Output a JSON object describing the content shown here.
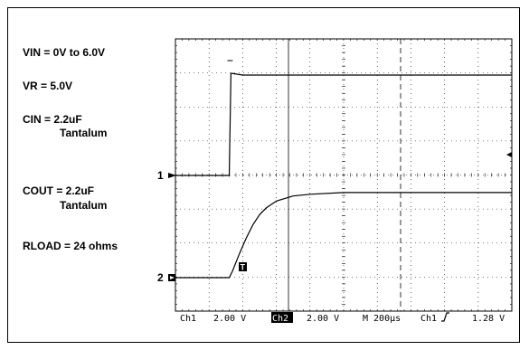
{
  "conditions": {
    "vin": "VIN = 0V to 6.0V",
    "vr": "VR = 5.0V",
    "cin_line1": "CIN = 2.2uF",
    "cin_line2": "Tantalum",
    "cout_line1": "COUT = 2.2uF",
    "cout_line2": "Tantalum",
    "rload": "RLOAD = 24 ohms"
  },
  "scope": {
    "ch1_marker": "1",
    "ch2_marker": "2",
    "trigger_marker": "T",
    "status_bar": {
      "ch1_label": "Ch1",
      "ch1_scale": "2.00 V",
      "ch2_label": "Ch2",
      "ch2_scale": "2.00 V",
      "timebase": "M 200µs",
      "trigger_source": "Ch1",
      "trigger_slope_icon": "rising-edge-icon",
      "trigger_level": "1.28 V"
    },
    "colors": {
      "trace": "#000000",
      "grid": "#000000",
      "background": "#ffffff",
      "ch2_label_bg": "#000000"
    }
  },
  "chart_data": {
    "type": "line",
    "title": "",
    "xlabel": "",
    "ylabel": "",
    "x_unit": "µs",
    "y_unit": "V",
    "grid": true,
    "grid_divisions": {
      "x": 10,
      "y": 8
    },
    "volts_per_div": {
      "ch1": 2.0,
      "ch2": 2.0
    },
    "time_per_div_us": 200,
    "xlim": [
      0,
      2000
    ],
    "series": [
      {
        "name": "Ch1",
        "x": [
          0,
          320,
          330,
          335,
          400,
          600,
          1000,
          1400,
          2000
        ],
        "y": [
          0.0,
          0.0,
          6.0,
          6.0,
          5.9,
          5.9,
          5.9,
          5.9,
          5.9
        ]
      },
      {
        "name": "Ch2",
        "x": [
          0,
          320,
          340,
          380,
          420,
          460,
          500,
          540,
          600,
          700,
          800,
          1000,
          1200,
          1400,
          1700,
          2000
        ],
        "y": [
          0.0,
          0.0,
          0.4,
          1.4,
          2.3,
          3.1,
          3.7,
          4.1,
          4.5,
          4.8,
          4.9,
          5.0,
          5.0,
          5.0,
          5.0,
          5.0
        ]
      }
    ]
  }
}
